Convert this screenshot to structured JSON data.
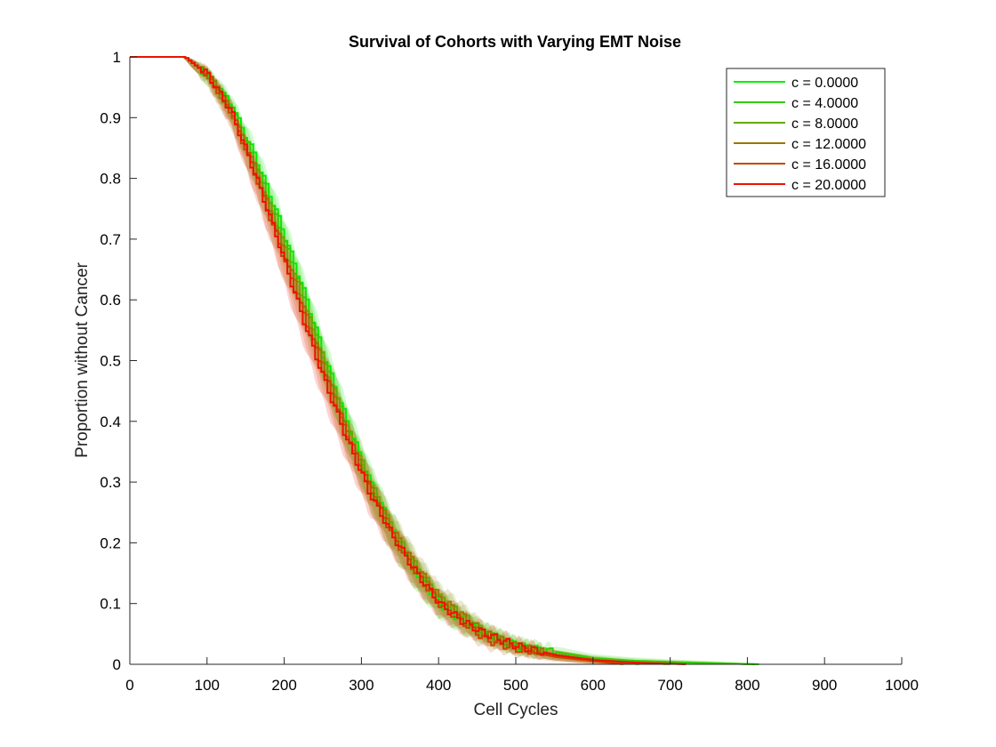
{
  "chart_data": {
    "type": "line",
    "title": "Survival of Cohorts with Varying EMT Noise",
    "xlabel": "Cell Cycles",
    "ylabel": "Proportion without Cancer",
    "xlim": [
      0,
      1000
    ],
    "ylim": [
      0,
      1
    ],
    "xticks": [
      "0",
      "100",
      "200",
      "300",
      "400",
      "500",
      "600",
      "700",
      "800",
      "900",
      "1000"
    ],
    "yticks": [
      "0",
      "0.1",
      "0.2",
      "0.3",
      "0.4",
      "0.5",
      "0.6",
      "0.7",
      "0.8",
      "0.9",
      "1"
    ],
    "grid": false,
    "legend_position": "top-right",
    "series": [
      {
        "name": "c = 0.0000",
        "color": "#00ee00",
        "end_x": 815,
        "x": [
          0,
          70,
          100,
          130,
          160,
          190,
          220,
          250,
          280,
          310,
          340,
          370,
          400,
          430,
          460,
          500,
          550,
          600,
          650,
          700,
          815
        ],
        "y": [
          1,
          1,
          0.97,
          0.92,
          0.84,
          0.74,
          0.63,
          0.51,
          0.4,
          0.3,
          0.22,
          0.15,
          0.1,
          0.07,
          0.05,
          0.03,
          0.015,
          0.008,
          0.005,
          0.003,
          0.0
        ]
      },
      {
        "name": "c = 4.0000",
        "color": "#33cc00",
        "end_x": 810,
        "x": [
          0,
          70,
          100,
          130,
          160,
          190,
          220,
          250,
          280,
          310,
          340,
          370,
          400,
          430,
          460,
          500,
          550,
          600,
          650,
          700,
          810
        ],
        "y": [
          1,
          1,
          0.97,
          0.92,
          0.83,
          0.73,
          0.62,
          0.5,
          0.39,
          0.29,
          0.21,
          0.15,
          0.1,
          0.07,
          0.05,
          0.03,
          0.02,
          0.01,
          0.006,
          0.004,
          0.0
        ]
      },
      {
        "name": "c = 8.0000",
        "color": "#66aa00",
        "end_x": 700,
        "x": [
          0,
          70,
          100,
          130,
          160,
          190,
          220,
          250,
          280,
          310,
          340,
          370,
          400,
          430,
          460,
          500,
          550,
          600,
          650,
          700
        ],
        "y": [
          1,
          1,
          0.97,
          0.91,
          0.82,
          0.72,
          0.61,
          0.5,
          0.39,
          0.3,
          0.22,
          0.16,
          0.11,
          0.08,
          0.05,
          0.03,
          0.015,
          0.008,
          0.003,
          0.0
        ]
      },
      {
        "name": "c = 12.0000",
        "color": "#997700",
        "end_x": 660,
        "x": [
          0,
          70,
          100,
          130,
          160,
          190,
          220,
          250,
          280,
          310,
          340,
          370,
          400,
          430,
          460,
          500,
          550,
          600,
          660
        ],
        "y": [
          1,
          1,
          0.97,
          0.91,
          0.82,
          0.71,
          0.6,
          0.49,
          0.38,
          0.29,
          0.22,
          0.16,
          0.11,
          0.08,
          0.05,
          0.03,
          0.015,
          0.006,
          0.0
        ]
      },
      {
        "name": "c = 16.0000",
        "color": "#cc4400",
        "end_x": 640,
        "x": [
          0,
          70,
          100,
          130,
          160,
          190,
          220,
          250,
          280,
          310,
          340,
          370,
          400,
          430,
          460,
          500,
          550,
          600,
          640
        ],
        "y": [
          1,
          1,
          0.97,
          0.91,
          0.81,
          0.7,
          0.59,
          0.48,
          0.38,
          0.29,
          0.21,
          0.15,
          0.1,
          0.07,
          0.04,
          0.025,
          0.012,
          0.005,
          0.0
        ]
      },
      {
        "name": "c = 20.0000",
        "color": "#ee1100",
        "end_x": 720,
        "x": [
          0,
          70,
          100,
          130,
          160,
          190,
          220,
          250,
          280,
          310,
          340,
          370,
          400,
          430,
          460,
          500,
          550,
          600,
          650,
          720
        ],
        "y": [
          1,
          1,
          0.97,
          0.91,
          0.81,
          0.7,
          0.58,
          0.47,
          0.37,
          0.28,
          0.21,
          0.15,
          0.1,
          0.07,
          0.05,
          0.03,
          0.015,
          0.007,
          0.003,
          0.0
        ]
      }
    ]
  }
}
